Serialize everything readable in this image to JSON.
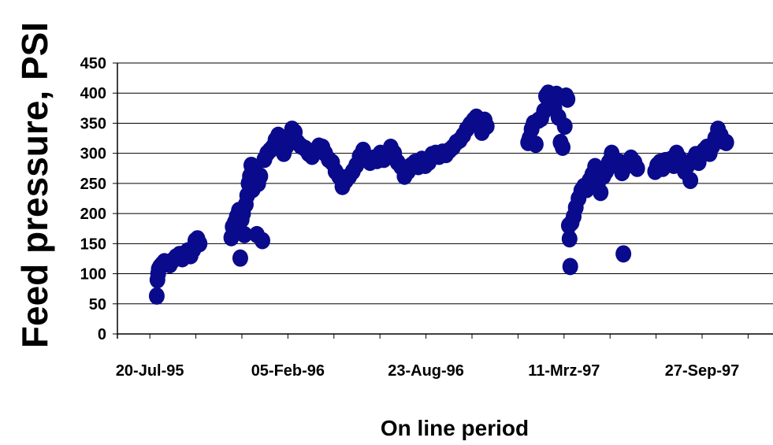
{
  "chart_data": {
    "type": "scatter",
    "title": "",
    "xlabel": "On line period",
    "ylabel": "Feed pressure, PSI",
    "ylim": [
      0,
      450
    ],
    "y_ticks": [
      "0",
      "50",
      "100",
      "150",
      "200",
      "250",
      "300",
      "350",
      "400",
      "450"
    ],
    "xlim": [
      "1995-06-03",
      "1998-01-10"
    ],
    "x_ticks": [
      {
        "date": "1995-07-20",
        "label": "20-Jul-95"
      },
      {
        "date": "1996-02-05",
        "label": "05-Feb-96"
      },
      {
        "date": "1996-08-23",
        "label": "23-Aug-96"
      },
      {
        "date": "1997-03-11",
        "label": "11-Mrz-97"
      },
      {
        "date": "1997-09-27",
        "label": "27-Sep-97"
      }
    ],
    "grid": "horizontal",
    "legend": "none",
    "marker_color": "#0a0a8c",
    "series": [
      {
        "points": [
          [
            "1995-07-30",
            63
          ],
          [
            "1995-07-31",
            90
          ],
          [
            "1995-08-01",
            100
          ],
          [
            "1995-08-02",
            108
          ],
          [
            "1995-08-04",
            112
          ],
          [
            "1995-08-07",
            116
          ],
          [
            "1995-08-10",
            120
          ],
          [
            "1995-08-14",
            118
          ],
          [
            "1995-08-18",
            115
          ],
          [
            "1995-08-22",
            122
          ],
          [
            "1995-08-27",
            128
          ],
          [
            "1995-09-01",
            132
          ],
          [
            "1995-09-05",
            125
          ],
          [
            "1995-09-09",
            134
          ],
          [
            "1995-09-13",
            138
          ],
          [
            "1995-09-17",
            130
          ],
          [
            "1995-09-21",
            140
          ],
          [
            "1995-09-24",
            155
          ],
          [
            "1995-09-27",
            158
          ],
          [
            "1995-09-30",
            150
          ],
          [
            "1995-11-15",
            160
          ],
          [
            "1995-11-17",
            178
          ],
          [
            "1995-11-20",
            185
          ],
          [
            "1995-11-23",
            195
          ],
          [
            "1995-11-26",
            205
          ],
          [
            "1995-11-28",
            126
          ],
          [
            "1995-11-30",
            190
          ],
          [
            "1995-12-02",
            200
          ],
          [
            "1995-12-04",
            165
          ],
          [
            "1995-12-06",
            215
          ],
          [
            "1995-12-08",
            230
          ],
          [
            "1995-12-10",
            250
          ],
          [
            "1995-12-12",
            262
          ],
          [
            "1995-12-14",
            280
          ],
          [
            "1995-12-16",
            240
          ],
          [
            "1995-12-18",
            255
          ],
          [
            "1995-12-20",
            270
          ],
          [
            "1995-12-22",
            165
          ],
          [
            "1995-12-24",
            250
          ],
          [
            "1995-12-27",
            262
          ],
          [
            "1995-12-30",
            155
          ],
          [
            "1996-01-02",
            290
          ],
          [
            "1996-01-06",
            300
          ],
          [
            "1996-01-10",
            305
          ],
          [
            "1996-01-14",
            310
          ],
          [
            "1996-01-18",
            322
          ],
          [
            "1996-01-22",
            330
          ],
          [
            "1996-01-26",
            315
          ],
          [
            "1996-01-30",
            300
          ],
          [
            "1996-02-03",
            312
          ],
          [
            "1996-02-07",
            320
          ],
          [
            "1996-02-11",
            340
          ],
          [
            "1996-02-15",
            335
          ],
          [
            "1996-02-19",
            318
          ],
          [
            "1996-02-24",
            312
          ],
          [
            "1996-03-01",
            308
          ],
          [
            "1996-03-06",
            300
          ],
          [
            "1996-03-11",
            295
          ],
          [
            "1996-03-16",
            305
          ],
          [
            "1996-03-21",
            312
          ],
          [
            "1996-03-26",
            310
          ],
          [
            "1996-03-30",
            300
          ],
          [
            "1996-04-04",
            290
          ],
          [
            "1996-04-09",
            285
          ],
          [
            "1996-04-14",
            270
          ],
          [
            "1996-04-19",
            262
          ],
          [
            "1996-04-24",
            245
          ],
          [
            "1996-04-29",
            255
          ],
          [
            "1996-05-04",
            262
          ],
          [
            "1996-05-09",
            270
          ],
          [
            "1996-05-14",
            280
          ],
          [
            "1996-05-19",
            295
          ],
          [
            "1996-05-24",
            305
          ],
          [
            "1996-05-29",
            290
          ],
          [
            "1996-06-03",
            285
          ],
          [
            "1996-06-08",
            292
          ],
          [
            "1996-06-13",
            288
          ],
          [
            "1996-06-18",
            300
          ],
          [
            "1996-06-23",
            290
          ],
          [
            "1996-06-28",
            298
          ],
          [
            "1996-07-03",
            310
          ],
          [
            "1996-07-08",
            300
          ],
          [
            "1996-07-13",
            285
          ],
          [
            "1996-07-18",
            278
          ],
          [
            "1996-07-23",
            262
          ],
          [
            "1996-07-28",
            270
          ],
          [
            "1996-08-02",
            280
          ],
          [
            "1996-08-07",
            285
          ],
          [
            "1996-08-12",
            278
          ],
          [
            "1996-08-17",
            290
          ],
          [
            "1996-08-22",
            280
          ],
          [
            "1996-08-27",
            285
          ],
          [
            "1996-09-01",
            298
          ],
          [
            "1996-09-06",
            300
          ],
          [
            "1996-09-11",
            295
          ],
          [
            "1996-09-16",
            302
          ],
          [
            "1996-09-21",
            298
          ],
          [
            "1996-09-26",
            305
          ],
          [
            "1996-10-01",
            310
          ],
          [
            "1996-10-06",
            318
          ],
          [
            "1996-10-11",
            322
          ],
          [
            "1996-10-16",
            330
          ],
          [
            "1996-10-21",
            340
          ],
          [
            "1996-10-26",
            348
          ],
          [
            "1996-10-31",
            355
          ],
          [
            "1996-11-04",
            360
          ],
          [
            "1996-11-08",
            350
          ],
          [
            "1996-11-12",
            335
          ],
          [
            "1996-11-16",
            355
          ],
          [
            "1996-11-19",
            345
          ],
          [
            "1997-01-18",
            318
          ],
          [
            "1997-01-20",
            325
          ],
          [
            "1997-01-23",
            340
          ],
          [
            "1997-01-26",
            350
          ],
          [
            "1997-01-29",
            315
          ],
          [
            "1997-02-02",
            355
          ],
          [
            "1997-02-06",
            358
          ],
          [
            "1997-02-10",
            370
          ],
          [
            "1997-02-13",
            395
          ],
          [
            "1997-02-16",
            400
          ],
          [
            "1997-02-19",
            385
          ],
          [
            "1997-02-22",
            392
          ],
          [
            "1997-02-25",
            375
          ],
          [
            "1997-02-28",
            398
          ],
          [
            "1997-03-03",
            360
          ],
          [
            "1997-03-06",
            318
          ],
          [
            "1997-03-09",
            310
          ],
          [
            "1997-03-12",
            345
          ],
          [
            "1997-03-14",
            395
          ],
          [
            "1997-03-16",
            390
          ],
          [
            "1997-03-18",
            180
          ],
          [
            "1997-03-19",
            158
          ],
          [
            "1997-03-20",
            112
          ],
          [
            "1997-03-22",
            185
          ],
          [
            "1997-03-25",
            195
          ],
          [
            "1997-03-28",
            210
          ],
          [
            "1997-04-01",
            225
          ],
          [
            "1997-04-05",
            238
          ],
          [
            "1997-04-09",
            245
          ],
          [
            "1997-04-13",
            240
          ],
          [
            "1997-04-17",
            255
          ],
          [
            "1997-04-21",
            265
          ],
          [
            "1997-04-25",
            278
          ],
          [
            "1997-04-29",
            250
          ],
          [
            "1997-05-03",
            235
          ],
          [
            "1997-05-07",
            262
          ],
          [
            "1997-05-11",
            270
          ],
          [
            "1997-05-15",
            285
          ],
          [
            "1997-05-19",
            300
          ],
          [
            "1997-05-23",
            290
          ],
          [
            "1997-05-27",
            280
          ],
          [
            "1997-05-31",
            285
          ],
          [
            "1997-06-03",
            268
          ],
          [
            "1997-06-05",
            133
          ],
          [
            "1997-06-08",
            278
          ],
          [
            "1997-06-11",
            285
          ],
          [
            "1997-06-16",
            292
          ],
          [
            "1997-06-21",
            285
          ],
          [
            "1997-06-25",
            275
          ],
          [
            "1997-07-21",
            270
          ],
          [
            "1997-07-24",
            280
          ],
          [
            "1997-07-28",
            285
          ],
          [
            "1997-08-01",
            275
          ],
          [
            "1997-08-05",
            288
          ],
          [
            "1997-08-09",
            285
          ],
          [
            "1997-08-13",
            290
          ],
          [
            "1997-08-17",
            280
          ],
          [
            "1997-08-21",
            300
          ],
          [
            "1997-08-25",
            292
          ],
          [
            "1997-08-29",
            285
          ],
          [
            "1997-09-02",
            270
          ],
          [
            "1997-09-06",
            280
          ],
          [
            "1997-09-10",
            255
          ],
          [
            "1997-09-14",
            290
          ],
          [
            "1997-09-18",
            298
          ],
          [
            "1997-09-22",
            285
          ],
          [
            "1997-09-26",
            300
          ],
          [
            "1997-09-30",
            305
          ],
          [
            "1997-10-04",
            310
          ],
          [
            "1997-10-08",
            300
          ],
          [
            "1997-10-12",
            312
          ],
          [
            "1997-10-16",
            325
          ],
          [
            "1997-10-20",
            340
          ],
          [
            "1997-10-24",
            330
          ],
          [
            "1997-10-28",
            320
          ],
          [
            "1997-11-01",
            318
          ]
        ]
      }
    ]
  }
}
